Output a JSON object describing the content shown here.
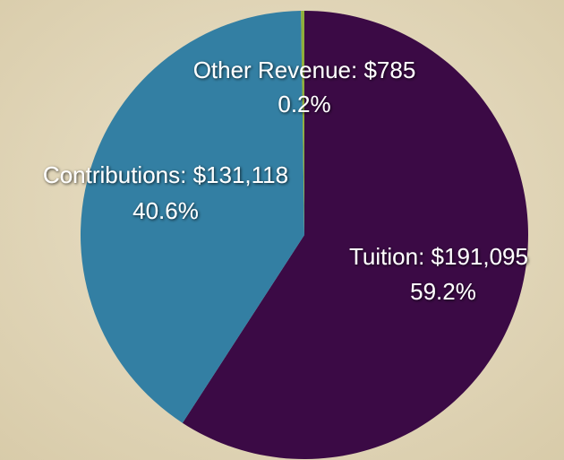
{
  "chart_data": {
    "type": "pie",
    "values": [
      191095,
      131118,
      785
    ],
    "value_labels": [
      "Tuition: $191,095",
      "Contributions: $131,118",
      "Other Revenue: $785"
    ],
    "percent_labels": [
      "59.2%",
      "40.6%",
      "0.2%"
    ],
    "colors": [
      "#3b0a45",
      "#337fa3",
      "#8fae3c"
    ]
  }
}
